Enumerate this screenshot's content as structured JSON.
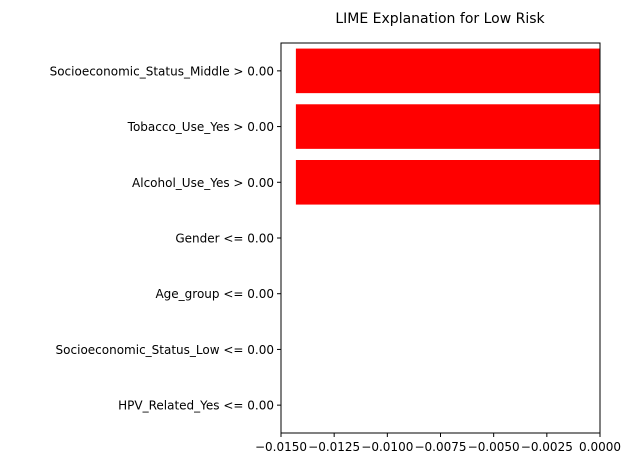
{
  "chart_data": {
    "type": "bar",
    "orientation": "horizontal",
    "title": "LIME Explanation for Low Risk",
    "xlabel": "",
    "ylabel": "",
    "categories": [
      "Socioeconomic_Status_Middle > 0.00",
      "Tobacco_Use_Yes > 0.00",
      "Alcohol_Use_Yes > 0.00",
      "Gender <= 0.00",
      "Age_group <= 0.00",
      "Socioeconomic_Status_Low <= 0.00",
      "HPV_Related_Yes <= 0.00"
    ],
    "values": [
      -0.0143,
      -0.0143,
      -0.0143,
      0,
      0,
      0,
      0
    ],
    "xlim": [
      -0.015,
      0.0
    ],
    "xticks": [
      -0.015,
      -0.0125,
      -0.01,
      -0.0075,
      -0.005,
      -0.0025,
      0.0
    ],
    "xtick_labels": [
      "−0.0150",
      "−0.0125",
      "−0.0100",
      "−0.0075",
      "−0.0050",
      "−0.0025",
      "0.0000"
    ],
    "bar_color": "#ff0000",
    "grid": false
  }
}
